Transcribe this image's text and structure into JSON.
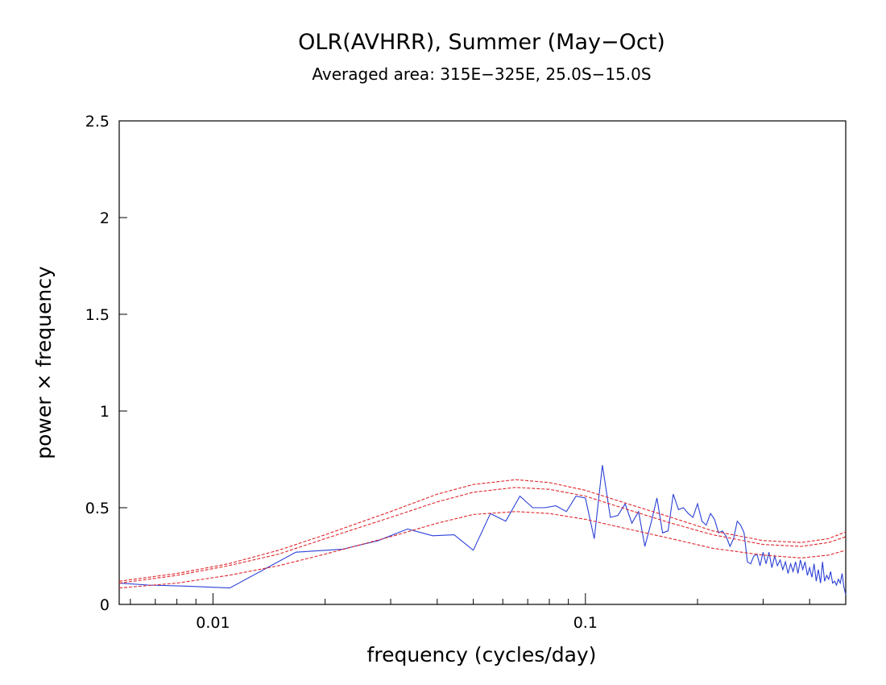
{
  "chart_data": {
    "type": "line",
    "title": "OLR(AVHRR), Summer (May−Oct)",
    "subtitle": "Averaged area: 315E−325E, 25.0S−15.0S",
    "xlabel": "frequency (cycles/day)",
    "ylabel": "power × frequency",
    "xscale": "log",
    "xlim": [
      0.0056,
      0.5
    ],
    "ylim": [
      0,
      2.5
    ],
    "x_tick_labels": [
      {
        "value": 0.01,
        "label": "0.01"
      },
      {
        "value": 0.1,
        "label": "0.1"
      }
    ],
    "x_minor_ticks": [
      0.006,
      0.007,
      0.008,
      0.009,
      0.02,
      0.03,
      0.04,
      0.05,
      0.06,
      0.07,
      0.08,
      0.09,
      0.2,
      0.3,
      0.4,
      0.5
    ],
    "y_ticks": [
      {
        "value": 0,
        "label": "0"
      },
      {
        "value": 0.5,
        "label": "0.5"
      },
      {
        "value": 1,
        "label": "1"
      },
      {
        "value": 1.5,
        "label": "1.5"
      },
      {
        "value": 2,
        "label": "2"
      },
      {
        "value": 2.5,
        "label": "2.5"
      }
    ],
    "series": [
      {
        "name": "spectrum",
        "color": "#2a3fd6",
        "style": "solid",
        "points": [
          [
            0.0056,
            0.11
          ],
          [
            0.0067,
            0.1
          ],
          [
            0.0083,
            0.095
          ],
          [
            0.0111,
            0.085
          ],
          [
            0.0167,
            0.27
          ],
          [
            0.0222,
            0.285
          ],
          [
            0.0278,
            0.33
          ],
          [
            0.0333,
            0.39
          ],
          [
            0.0389,
            0.355
          ],
          [
            0.0444,
            0.36
          ],
          [
            0.05,
            0.28
          ],
          [
            0.0556,
            0.47
          ],
          [
            0.0611,
            0.43
          ],
          [
            0.0667,
            0.56
          ],
          [
            0.0722,
            0.5
          ],
          [
            0.0778,
            0.5
          ],
          [
            0.0833,
            0.51
          ],
          [
            0.0889,
            0.48
          ],
          [
            0.0944,
            0.56
          ],
          [
            0.1,
            0.55
          ],
          [
            0.1056,
            0.34
          ],
          [
            0.1111,
            0.72
          ],
          [
            0.1167,
            0.45
          ],
          [
            0.1222,
            0.46
          ],
          [
            0.1278,
            0.52
          ],
          [
            0.1333,
            0.42
          ],
          [
            0.1389,
            0.48
          ],
          [
            0.1444,
            0.3
          ],
          [
            0.15,
            0.42
          ],
          [
            0.1556,
            0.55
          ],
          [
            0.1611,
            0.37
          ],
          [
            0.1667,
            0.38
          ],
          [
            0.1722,
            0.57
          ],
          [
            0.1778,
            0.49
          ],
          [
            0.1833,
            0.5
          ],
          [
            0.1889,
            0.47
          ],
          [
            0.1944,
            0.45
          ],
          [
            0.2,
            0.52
          ],
          [
            0.2056,
            0.43
          ],
          [
            0.2111,
            0.41
          ],
          [
            0.2167,
            0.47
          ],
          [
            0.2222,
            0.44
          ],
          [
            0.2278,
            0.37
          ],
          [
            0.2333,
            0.38
          ],
          [
            0.2389,
            0.35
          ],
          [
            0.2444,
            0.3
          ],
          [
            0.25,
            0.34
          ],
          [
            0.2556,
            0.43
          ],
          [
            0.2611,
            0.41
          ],
          [
            0.2667,
            0.37
          ],
          [
            0.2722,
            0.22
          ],
          [
            0.2778,
            0.21
          ],
          [
            0.2833,
            0.25
          ],
          [
            0.2889,
            0.26
          ],
          [
            0.2944,
            0.2
          ],
          [
            0.3,
            0.27
          ],
          [
            0.3056,
            0.21
          ],
          [
            0.3111,
            0.27
          ],
          [
            0.3167,
            0.19
          ],
          [
            0.3222,
            0.25
          ],
          [
            0.3278,
            0.2
          ],
          [
            0.3333,
            0.23
          ],
          [
            0.3389,
            0.18
          ],
          [
            0.3444,
            0.22
          ],
          [
            0.35,
            0.16
          ],
          [
            0.3556,
            0.21
          ],
          [
            0.3611,
            0.17
          ],
          [
            0.3667,
            0.22
          ],
          [
            0.3722,
            0.16
          ],
          [
            0.3778,
            0.23
          ],
          [
            0.3833,
            0.18
          ],
          [
            0.3889,
            0.22
          ],
          [
            0.3944,
            0.15
          ],
          [
            0.4,
            0.19
          ],
          [
            0.4056,
            0.14
          ],
          [
            0.4111,
            0.21
          ],
          [
            0.4167,
            0.12
          ],
          [
            0.4222,
            0.18
          ],
          [
            0.4278,
            0.11
          ],
          [
            0.4333,
            0.22
          ],
          [
            0.4389,
            0.12
          ],
          [
            0.4444,
            0.15
          ],
          [
            0.45,
            0.13
          ],
          [
            0.4556,
            0.17
          ],
          [
            0.4611,
            0.11
          ],
          [
            0.4667,
            0.12
          ],
          [
            0.4722,
            0.1
          ],
          [
            0.4778,
            0.13
          ],
          [
            0.4833,
            0.11
          ],
          [
            0.4889,
            0.16
          ],
          [
            0.4944,
            0.09
          ],
          [
            0.5,
            0.05
          ]
        ]
      },
      {
        "name": "red-noise-upper-bound",
        "color": "#e0252b",
        "style": "dashed",
        "points": [
          [
            0.0056,
            0.12
          ],
          [
            0.008,
            0.16
          ],
          [
            0.011,
            0.21
          ],
          [
            0.015,
            0.28
          ],
          [
            0.02,
            0.36
          ],
          [
            0.03,
            0.48
          ],
          [
            0.04,
            0.57
          ],
          [
            0.05,
            0.62
          ],
          [
            0.065,
            0.645
          ],
          [
            0.08,
            0.63
          ],
          [
            0.1,
            0.59
          ],
          [
            0.13,
            0.52
          ],
          [
            0.17,
            0.45
          ],
          [
            0.22,
            0.38
          ],
          [
            0.3,
            0.33
          ],
          [
            0.38,
            0.32
          ],
          [
            0.45,
            0.34
          ],
          [
            0.5,
            0.375
          ]
        ]
      },
      {
        "name": "red-noise-middle-bound",
        "color": "#e0252b",
        "style": "dashed",
        "points": [
          [
            0.0056,
            0.11
          ],
          [
            0.008,
            0.15
          ],
          [
            0.011,
            0.2
          ],
          [
            0.015,
            0.26
          ],
          [
            0.02,
            0.34
          ],
          [
            0.03,
            0.45
          ],
          [
            0.04,
            0.53
          ],
          [
            0.05,
            0.58
          ],
          [
            0.065,
            0.605
          ],
          [
            0.08,
            0.595
          ],
          [
            0.1,
            0.56
          ],
          [
            0.13,
            0.49
          ],
          [
            0.17,
            0.42
          ],
          [
            0.22,
            0.36
          ],
          [
            0.3,
            0.31
          ],
          [
            0.38,
            0.3
          ],
          [
            0.45,
            0.32
          ],
          [
            0.5,
            0.35
          ]
        ]
      },
      {
        "name": "red-noise-lower-bound",
        "color": "#e0252b",
        "style": "dashed",
        "points": [
          [
            0.0056,
            0.085
          ],
          [
            0.008,
            0.11
          ],
          [
            0.011,
            0.15
          ],
          [
            0.015,
            0.2
          ],
          [
            0.02,
            0.26
          ],
          [
            0.03,
            0.35
          ],
          [
            0.04,
            0.42
          ],
          [
            0.05,
            0.465
          ],
          [
            0.065,
            0.48
          ],
          [
            0.08,
            0.47
          ],
          [
            0.1,
            0.44
          ],
          [
            0.13,
            0.39
          ],
          [
            0.17,
            0.34
          ],
          [
            0.22,
            0.29
          ],
          [
            0.3,
            0.255
          ],
          [
            0.38,
            0.24
          ],
          [
            0.45,
            0.255
          ],
          [
            0.5,
            0.28
          ]
        ]
      }
    ]
  }
}
